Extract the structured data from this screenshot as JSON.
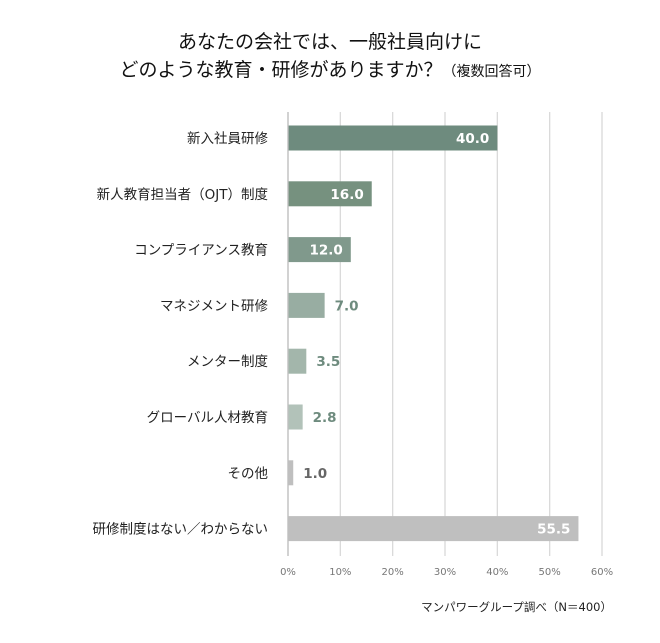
{
  "chart_data": {
    "type": "bar",
    "orientation": "horizontal",
    "title_line1": "あなたの会社では、一般社員向けに",
    "title_line2": "どのような教育・研修がありますか？",
    "title_note": "（複数回答可）",
    "categories": [
      "新入社員研修",
      "新人教育担当者（OJT）制度",
      "コンプライアンス教育",
      "マネジメント研修",
      "メンター制度",
      "グローバル人材教育",
      "その他",
      "研修制度はない／わからない"
    ],
    "values": [
      40.0,
      16.0,
      12.0,
      7.0,
      3.5,
      2.8,
      1.0,
      55.5
    ],
    "value_labels": [
      "40.0",
      "16.0",
      "12.0",
      "7.0",
      "3.5",
      "2.8",
      "1.0",
      "55.5"
    ],
    "bar_colors": [
      "#6e8b7e",
      "#76917f",
      "#80998c",
      "#98ada2",
      "#a3b6ab",
      "#b2c2b9",
      "#bfbfbf",
      "#bfbfbf"
    ],
    "label_colors_outside": [
      "#6e8b7e",
      "#6e8b7e",
      "#6e8b7e",
      "#6e8b7e",
      "#6e8b7e",
      "#6e8b7e",
      "#666666",
      "#666666"
    ],
    "xlim": [
      0,
      60
    ],
    "xticks": [
      "0%",
      "10%",
      "20%",
      "30%",
      "40%",
      "50%",
      "60%"
    ],
    "grid": true,
    "source": "マンパワーグループ調べ（N＝400）"
  }
}
